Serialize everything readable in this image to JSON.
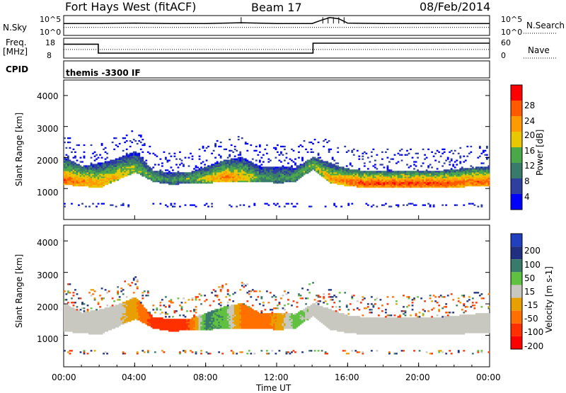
{
  "header": {
    "station": "Fort Hays West (fitACF)",
    "beam": "Beam 17",
    "date": "08/Feb/2014"
  },
  "strips": {
    "nsky_label": "N.Sky",
    "nsky_ticks": [
      "10^5",
      "10^0"
    ],
    "nsearch_label": "N.Search",
    "nsearch_ticks": [
      "10^5",
      "10^0"
    ],
    "freq_label": "Freq.",
    "freq_unit": "[MHz]",
    "freq_ticks": [
      "18",
      "8"
    ],
    "nave_label": "Nave",
    "nave_ticks": [
      "60",
      "0"
    ],
    "cpid_label": "CPID",
    "cpid_value": "themis -3300 IF"
  },
  "x_axis": {
    "label": "Time UT",
    "ticks": [
      "00:00",
      "04:00",
      "08:00",
      "12:00",
      "16:00",
      "20:00",
      "00:00"
    ]
  },
  "colors": {
    "power": [
      "#0000ff",
      "#2f3fa0",
      "#3a7a6a",
      "#4aa84a",
      "#e8c800",
      "#ff9a00",
      "#ff5a00",
      "#ff0000"
    ],
    "velocity": [
      "#2040c0",
      "#203080",
      "#3a7a6a",
      "#60c040",
      "#c8c8c0",
      "#e8a000",
      "#ff7000",
      "#ff3000",
      "#ff0000"
    ]
  },
  "chart_data": [
    {
      "type": "line",
      "name": "N.Sky / N.Search",
      "x": [
        0,
        2,
        4,
        6,
        8,
        10,
        12,
        14,
        14.5,
        15,
        15.5,
        16,
        18,
        20,
        22,
        24
      ],
      "series": [
        {
          "name": "N.Sky",
          "values": [
            3.0,
            3.0,
            3.1,
            3.0,
            3.0,
            3.2,
            3.0,
            3.0,
            3.8,
            4.5,
            4.2,
            3.1,
            3.0,
            3.0,
            3.0,
            3.0
          ]
        },
        {
          "name": "N.Search",
          "values": [
            2.0,
            2.0,
            2.0,
            2.0,
            2.0,
            2.0,
            2.0,
            2.0,
            2.0,
            2.0,
            2.0,
            2.0,
            2.0,
            2.0,
            2.0,
            2.0
          ]
        }
      ],
      "ylim": [
        0,
        5
      ]
    },
    {
      "type": "line",
      "name": "Freq / Nave",
      "x": [
        0,
        1.95,
        1.95,
        14.05,
        14.05,
        24
      ],
      "series": [
        {
          "name": "Freq.",
          "values": [
            15,
            15,
            10.5,
            10.5,
            15.5,
            15.5
          ]
        },
        {
          "name": "Nave",
          "values": [
            26,
            26,
            26,
            26,
            26,
            26
          ]
        }
      ],
      "freq_ylim": [
        8,
        18
      ],
      "nave_ylim": [
        0,
        60
      ]
    },
    {
      "type": "heatmap",
      "title": "Power",
      "ylabel": "Slant Range [km]",
      "colorbar_label": "Power [dB]",
      "colorbar_ticks": [
        4,
        8,
        12,
        16,
        20,
        24,
        28
      ],
      "clim": [
        0,
        32
      ],
      "xlim": [
        0,
        24
      ],
      "ylim": [
        0,
        4500
      ],
      "yticks": [
        1000,
        2000,
        3000,
        4000
      ],
      "echo_band": {
        "x": [
          0,
          1,
          2,
          3,
          4,
          5,
          6,
          7,
          8,
          9,
          10,
          11,
          12,
          13,
          14,
          15,
          16,
          17,
          18,
          19,
          20,
          21,
          22,
          23,
          24
        ],
        "bottom": [
          1100,
          1050,
          1000,
          1250,
          1500,
          1200,
          1100,
          1150,
          1150,
          1200,
          1200,
          1200,
          1150,
          1200,
          1600,
          1150,
          1050,
          1000,
          1000,
          1000,
          1000,
          1000,
          1000,
          1050,
          1050
        ],
        "top": [
          2000,
          1700,
          1800,
          1950,
          2200,
          1550,
          1500,
          1500,
          1700,
          1900,
          2000,
          1700,
          1700,
          1650,
          2000,
          1800,
          1600,
          1550,
          1550,
          1550,
          1550,
          1550,
          1600,
          1650,
          1700
        ],
        "peak": [
          26,
          24,
          22,
          20,
          16,
          14,
          12,
          14,
          18,
          24,
          20,
          14,
          12,
          14,
          16,
          22,
          26,
          28,
          28,
          28,
          28,
          28,
          26,
          26,
          26
        ]
      }
    },
    {
      "type": "heatmap",
      "title": "Velocity",
      "ylabel": "Slant Range [km]",
      "colorbar_label": "Velocity [m s-1]",
      "colorbar_ticks": [
        200,
        100,
        50,
        15,
        -15,
        -50,
        -100,
        -200
      ],
      "clim": [
        -250,
        250
      ],
      "xlim": [
        0,
        24
      ],
      "ylim": [
        0,
        4500
      ],
      "yticks": [
        1000,
        2000,
        3000,
        4000
      ],
      "echo_band": {
        "x": [
          0,
          1,
          2,
          3,
          4,
          5,
          6,
          7,
          8,
          9,
          10,
          11,
          12,
          13,
          14,
          15,
          16,
          17,
          18,
          19,
          20,
          21,
          22,
          23,
          24
        ],
        "bottom": [
          1100,
          1050,
          1000,
          1250,
          1500,
          1200,
          1100,
          1150,
          1150,
          1200,
          1200,
          1200,
          1150,
          1200,
          1600,
          1150,
          1050,
          1000,
          1000,
          1000,
          1000,
          1000,
          1000,
          1050,
          1050
        ],
        "top": [
          2000,
          1700,
          1800,
          1950,
          2200,
          1550,
          1500,
          1500,
          1700,
          1900,
          2000,
          1700,
          1700,
          1650,
          2000,
          1800,
          1600,
          1550,
          1550,
          1550,
          1550,
          1550,
          1600,
          1650,
          1700
        ],
        "velocity": [
          0,
          0,
          0,
          0,
          -40,
          -120,
          -150,
          -100,
          60,
          40,
          -60,
          -80,
          -40,
          30,
          0,
          0,
          0,
          0,
          0,
          0,
          0,
          0,
          0,
          0,
          0
        ]
      }
    }
  ]
}
